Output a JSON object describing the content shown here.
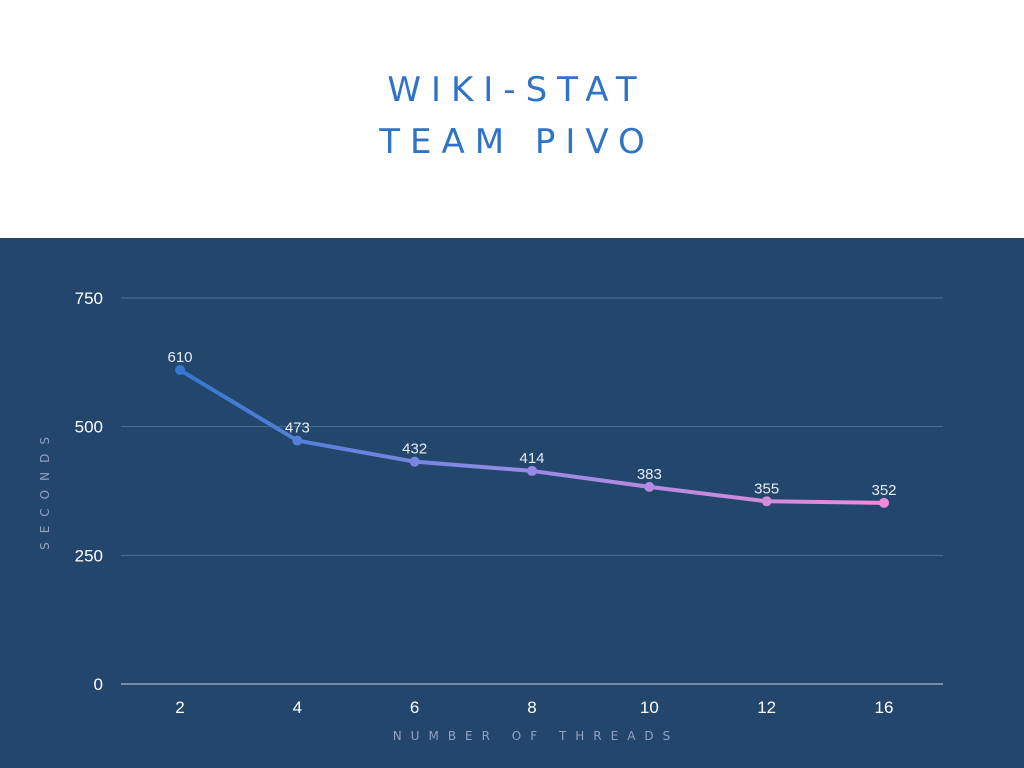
{
  "chart_data": {
    "type": "line",
    "title": "WIKI-STAT",
    "subtitle": "TEAM PIVO",
    "xlabel": "NUMBER OF THREADS",
    "ylabel": "SECONDS",
    "categories": [
      "2",
      "4",
      "6",
      "8",
      "10",
      "12",
      "16"
    ],
    "series": [
      {
        "values": [
          610,
          473,
          432,
          414,
          383,
          355,
          352
        ]
      }
    ],
    "data_labels": [
      "610",
      "473",
      "432",
      "414",
      "383",
      "355",
      "352"
    ],
    "ylim": [
      0,
      750
    ],
    "yticks": [
      0,
      250,
      500,
      750
    ],
    "ytick_labels": [
      "0",
      "250",
      "500",
      "750"
    ],
    "grid": true,
    "legend": "none",
    "colors": {
      "line_start": "#3378d0",
      "line_mid": "#8f8ae6",
      "line_end": "#f08bd9",
      "panel_bg": "#23466c",
      "title": "#2f73c4"
    }
  }
}
